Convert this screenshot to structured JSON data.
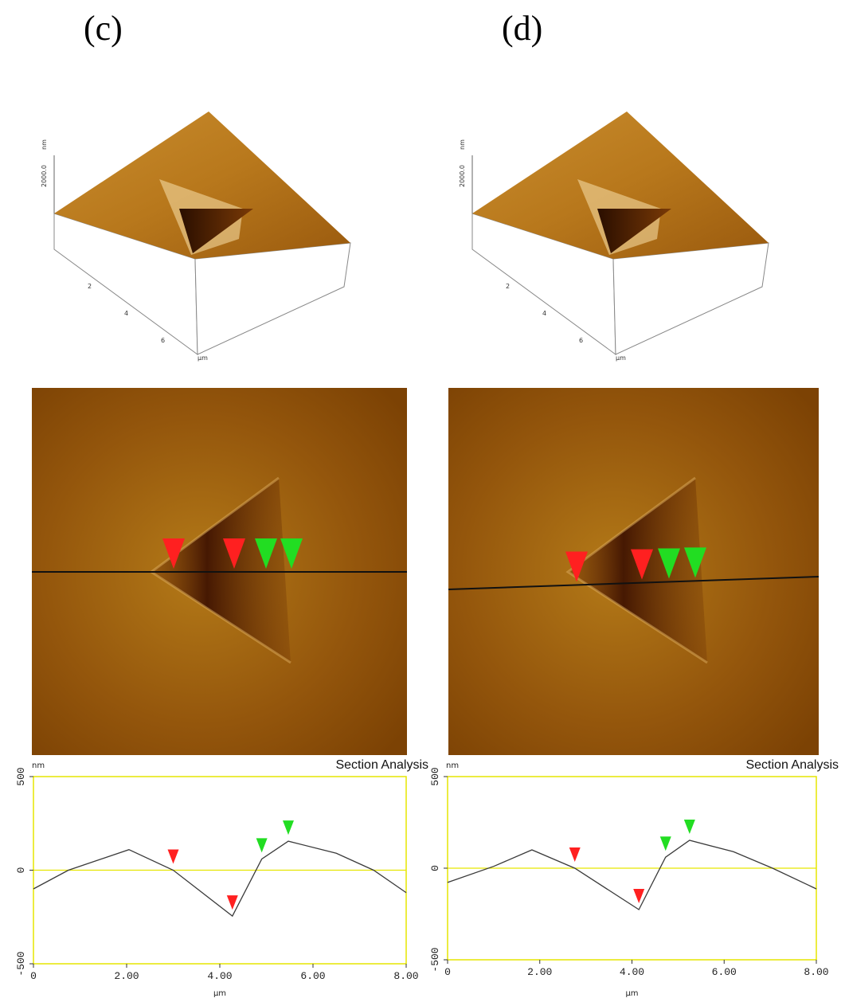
{
  "panels": [
    {
      "label": "(c)",
      "surface_axes": {
        "z_unit": "nm",
        "z_value": "2000.0",
        "ticks": [
          "2",
          "4",
          "6"
        ],
        "unit": "µm"
      }
    },
    {
      "label": "(d)",
      "surface_axes": {
        "z_unit": "nm",
        "z_value": "2000.0",
        "ticks": [
          "2",
          "4",
          "6"
        ],
        "unit": "µm"
      }
    }
  ],
  "chart_data": [
    {
      "type": "line",
      "title": "Section Analysis",
      "ylabel": "nm",
      "xlabel": "µm",
      "x": [
        0,
        0.75,
        2.05,
        3.0,
        4.27,
        4.9,
        5.47,
        6.5,
        7.3,
        8.0
      ],
      "values": [
        -100,
        0,
        110,
        0,
        -245,
        60,
        155,
        90,
        0,
        -120
      ],
      "color": "#3a3a3a",
      "frame_color": "#e6e600",
      "xlim": [
        0,
        8
      ],
      "ylim": [
        -500,
        500
      ],
      "xticks": [
        0,
        {
          "value": 2,
          "label": "2.00"
        },
        {
          "value": 4,
          "label": "4.00"
        },
        {
          "value": 6,
          "label": "6.00"
        },
        {
          "value": 8,
          "label": "8.00"
        }
      ],
      "yticks": [
        -500,
        0,
        500
      ],
      "cursors": [
        {
          "x": 3.0,
          "color": "#ff2020"
        },
        {
          "x": 4.27,
          "color": "#ff2020"
        },
        {
          "x": 4.9,
          "color": "#22dd22"
        },
        {
          "x": 5.47,
          "color": "#22dd22"
        }
      ]
    },
    {
      "type": "line",
      "title": "Section Analysis",
      "ylabel": "nm",
      "xlabel": "µm",
      "x": [
        0,
        1.0,
        1.83,
        2.76,
        4.15,
        4.73,
        5.25,
        6.2,
        7.05,
        8.0
      ],
      "values": [
        -78,
        10,
        100,
        0,
        -226,
        60,
        152,
        90,
        0,
        -113
      ],
      "color": "#3a3a3a",
      "frame_color": "#e6e600",
      "xlim": [
        0,
        8
      ],
      "ylim": [
        -500,
        500
      ],
      "xticks": [
        0,
        {
          "value": 2,
          "label": "2.00"
        },
        {
          "value": 4,
          "label": "4.00"
        },
        {
          "value": 6,
          "label": "6.00"
        },
        {
          "value": 8,
          "label": "8.00"
        }
      ],
      "yticks": [
        -500,
        0,
        500
      ],
      "cursors": [
        {
          "x": 2.76,
          "color": "#ff2020"
        },
        {
          "x": 4.15,
          "color": "#ff2020"
        },
        {
          "x": 4.73,
          "color": "#22dd22"
        },
        {
          "x": 5.25,
          "color": "#22dd22"
        }
      ]
    }
  ]
}
